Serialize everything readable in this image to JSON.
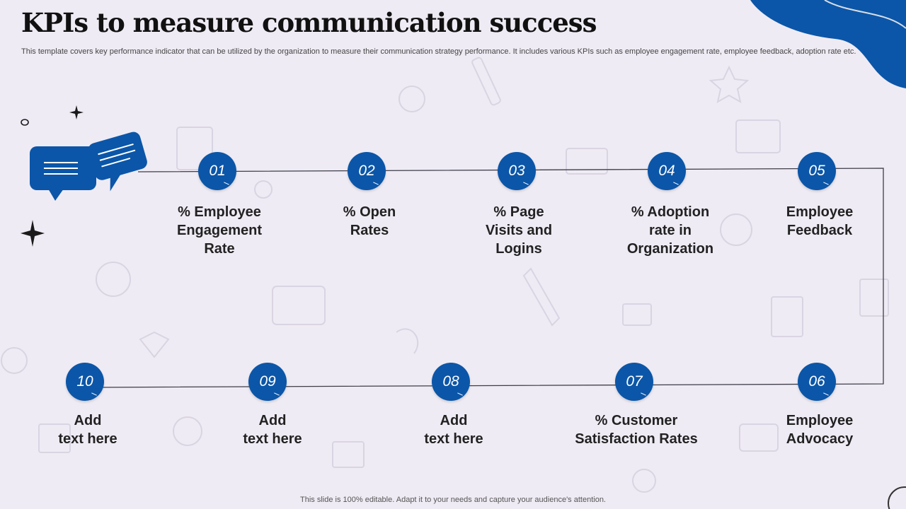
{
  "title": "KPIs to measure communication success",
  "subtitle": "This template covers key performance indicator that can be utilized by the organization to measure their communication strategy performance. It includes various KPIs such as employee engagement rate, employee feedback, adoption rate etc.",
  "steps": [
    {
      "number": "01",
      "label": "% Employee\nEngagement\nRate"
    },
    {
      "number": "02",
      "label": "% Open\nRates"
    },
    {
      "number": "03",
      "label": "% Page\nVisits  and\nLogins"
    },
    {
      "number": "04",
      "label": "% Adoption\nrate in\nOrganization"
    },
    {
      "number": "05",
      "label": "Employee\nFeedback"
    },
    {
      "number": "06",
      "label": "Employee\nAdvocacy"
    },
    {
      "number": "07",
      "label": "% Customer\nSatisfaction Rates"
    },
    {
      "number": "08",
      "label": "Add\ntext here"
    },
    {
      "number": "09",
      "label": "Add\ntext here"
    },
    {
      "number": "10",
      "label": "Add\ntext here"
    }
  ],
  "footer": "This slide is 100% editable. Adapt it to your needs and capture your audience's attention.",
  "colors": {
    "accent": "#0b56a8",
    "background": "#efebf4",
    "text": "#222222"
  },
  "icons": [
    "chat-bubbles-icon",
    "sparkle-icon"
  ]
}
